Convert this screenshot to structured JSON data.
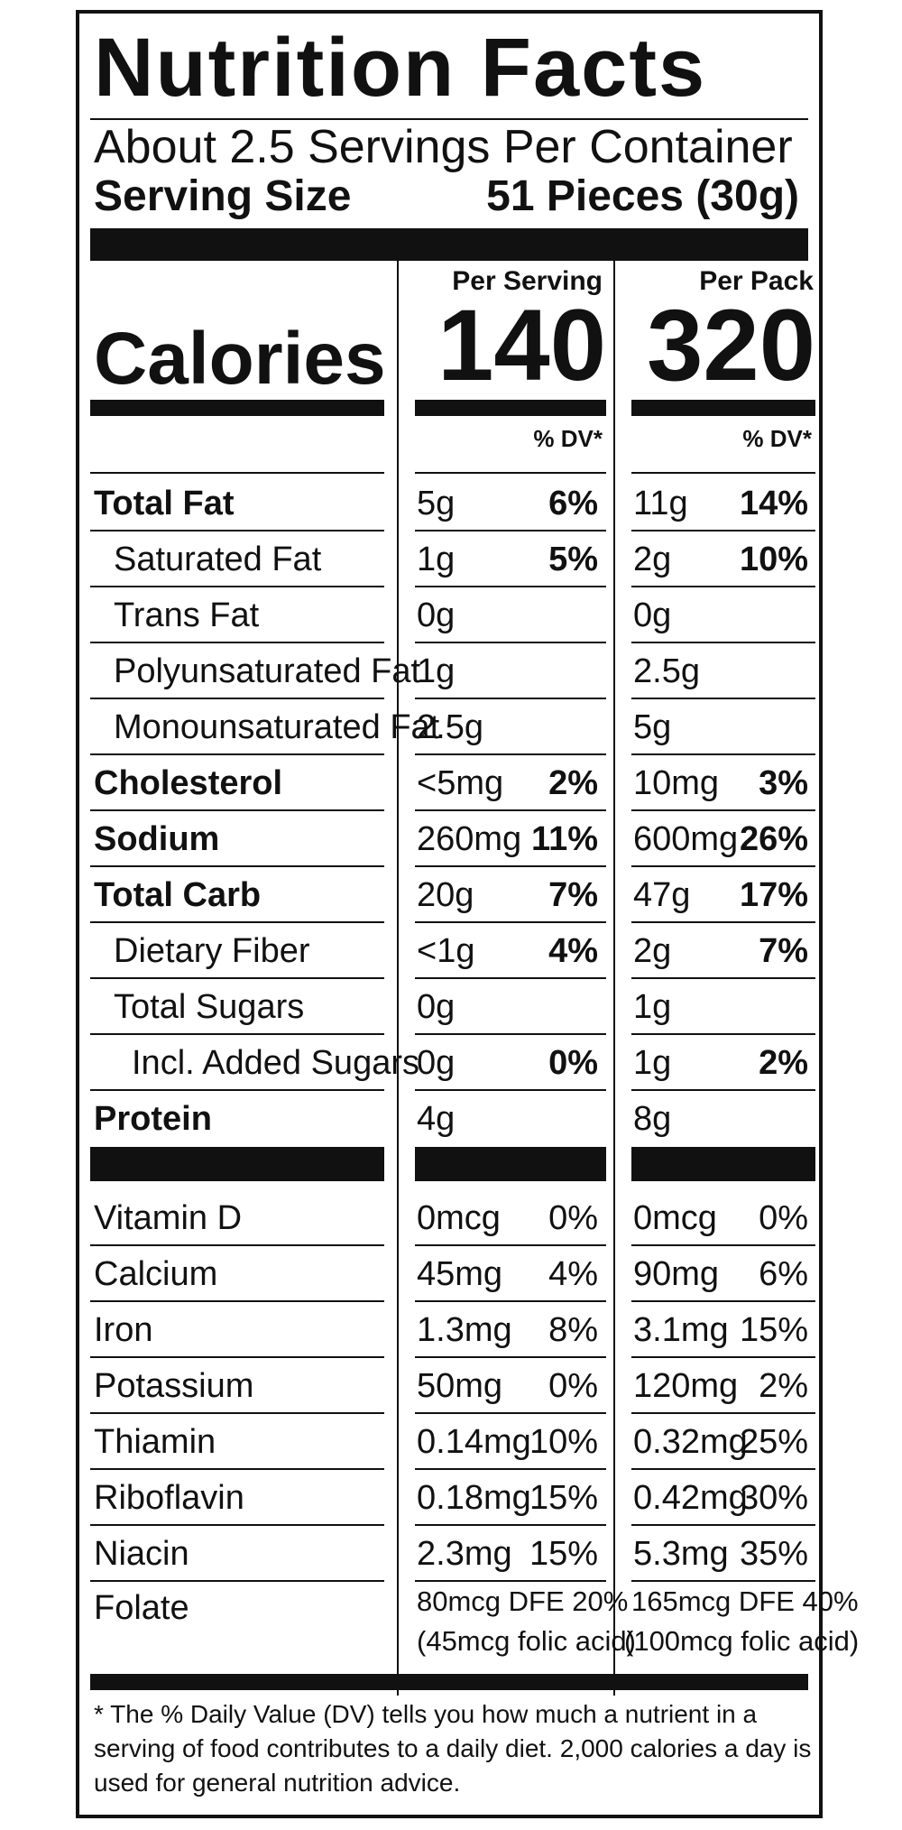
{
  "title": "Nutrition Facts",
  "servings_per_container": "About 2.5 Servings Per Container",
  "serving_size": {
    "label": "Serving Size",
    "value": "51 Pieces (30g)"
  },
  "columns": {
    "per_serving": "Per Serving",
    "per_pack": "Per Pack"
  },
  "calories": {
    "label": "Calories",
    "per_serving": "140",
    "per_pack": "320"
  },
  "dv_header": "% DV*",
  "nutrients": [
    {
      "name": "Total Fat",
      "style": "bold",
      "s_amt": "5g",
      "s_dv": "6%",
      "p_amt": "11g",
      "p_dv": "14%"
    },
    {
      "name": "Saturated Fat",
      "style": "ind1",
      "s_amt": "1g",
      "s_dv": "5%",
      "p_amt": "2g",
      "p_dv": "10%"
    },
    {
      "name": "Trans Fat",
      "style": "ind1",
      "s_amt": "0g",
      "s_dv": "",
      "p_amt": "0g",
      "p_dv": ""
    },
    {
      "name": "Polyunsaturated Fat",
      "style": "ind1",
      "s_amt": "1g",
      "s_dv": "",
      "p_amt": "2.5g",
      "p_dv": ""
    },
    {
      "name": "Monounsaturated Fat",
      "style": "ind1",
      "s_amt": "2.5g",
      "s_dv": "",
      "p_amt": "5g",
      "p_dv": ""
    },
    {
      "name": "Cholesterol",
      "style": "bold",
      "s_amt": "<5mg",
      "s_dv": "2%",
      "p_amt": "10mg",
      "p_dv": "3%"
    },
    {
      "name": "Sodium",
      "style": "bold",
      "s_amt": "260mg",
      "s_dv": "11%",
      "p_amt": "600mg",
      "p_dv": "26%"
    },
    {
      "name": "Total Carb",
      "style": "bold",
      "s_amt": "20g",
      "s_dv": "7%",
      "p_amt": "47g",
      "p_dv": "17%"
    },
    {
      "name": "Dietary Fiber",
      "style": "ind1",
      "s_amt": "<1g",
      "s_dv": "4%",
      "p_amt": "2g",
      "p_dv": "7%"
    },
    {
      "name": "Total Sugars",
      "style": "ind1",
      "s_amt": "0g",
      "s_dv": "",
      "p_amt": "1g",
      "p_dv": ""
    },
    {
      "name": "Incl. Added Sugars",
      "style": "ind2",
      "s_amt": "0g",
      "s_dv": "0%",
      "p_amt": "1g",
      "p_dv": "2%"
    },
    {
      "name": "Protein",
      "style": "bold",
      "s_amt": "4g",
      "s_dv": "",
      "p_amt": "8g",
      "p_dv": ""
    }
  ],
  "vitamins": [
    {
      "name": "Vitamin D",
      "s_amt": "0mcg",
      "s_dv": "0%",
      "p_amt": "0mcg",
      "p_dv": "0%"
    },
    {
      "name": "Calcium",
      "s_amt": "45mg",
      "s_dv": "4%",
      "p_amt": "90mg",
      "p_dv": "6%"
    },
    {
      "name": "Iron",
      "s_amt": "1.3mg",
      "s_dv": "8%",
      "p_amt": "3.1mg",
      "p_dv": "15%"
    },
    {
      "name": "Potassium",
      "s_amt": "50mg",
      "s_dv": "0%",
      "p_amt": "120mg",
      "p_dv": "2%"
    },
    {
      "name": "Thiamin",
      "s_amt": "0.14mg",
      "s_dv": "10%",
      "p_amt": "0.32mg",
      "p_dv": "25%"
    },
    {
      "name": "Riboflavin",
      "s_amt": "0.18mg",
      "s_dv": "15%",
      "p_amt": "0.42mg",
      "p_dv": "30%"
    },
    {
      "name": "Niacin",
      "s_amt": "2.3mg",
      "s_dv": "15%",
      "p_amt": "5.3mg",
      "p_dv": "35%"
    }
  ],
  "folate": {
    "name": "Folate",
    "s_line1": "80mcg DFE 20%",
    "s_line2": "(45mcg folic acid)",
    "p_line1": "165mcg DFE  40%",
    "p_line2": "(100mcg folic acid)"
  },
  "footnote": "* The % Daily Value (DV) tells you how much a nutrient in a serving of food contributes to a daily diet. 2,000 calories a day is used for general nutrition advice."
}
